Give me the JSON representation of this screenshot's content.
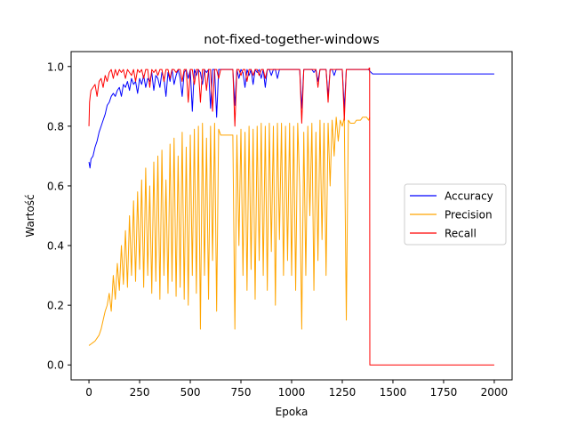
{
  "chart_data": {
    "type": "line",
    "title": "not-fixed-together-windows",
    "xlabel": "Epoka",
    "ylabel": "Wartość",
    "xlim": [
      -88,
      2088
    ],
    "ylim": [
      -0.05,
      1.05
    ],
    "xticks": [
      0,
      250,
      500,
      750,
      1000,
      1250,
      1500,
      1750,
      2000
    ],
    "yticks": [
      0.0,
      0.2,
      0.4,
      0.6,
      0.8,
      1.0
    ],
    "grid": false,
    "legend_position": "center-right",
    "series": [
      {
        "name": "Accuracy",
        "color": "#0000ff",
        "x": [
          0,
          5,
          10,
          20,
          30,
          40,
          50,
          60,
          70,
          80,
          90,
          100,
          110,
          120,
          130,
          140,
          150,
          160,
          170,
          180,
          190,
          200,
          210,
          220,
          230,
          240,
          250,
          260,
          270,
          280,
          290,
          300,
          310,
          320,
          330,
          340,
          350,
          360,
          370,
          380,
          390,
          400,
          410,
          420,
          430,
          440,
          450,
          460,
          470,
          480,
          490,
          500,
          510,
          520,
          530,
          540,
          550,
          560,
          570,
          580,
          590,
          600,
          610,
          620,
          630,
          640,
          650,
          660,
          670,
          680,
          690,
          700,
          710,
          720,
          730,
          740,
          750,
          760,
          770,
          780,
          790,
          800,
          810,
          820,
          830,
          840,
          850,
          860,
          870,
          880,
          890,
          900,
          910,
          920,
          930,
          940,
          950,
          960,
          970,
          980,
          990,
          1000,
          1010,
          1020,
          1030,
          1040,
          1050,
          1060,
          1070,
          1080,
          1090,
          1100,
          1110,
          1120,
          1130,
          1140,
          1150,
          1160,
          1170,
          1180,
          1190,
          1200,
          1210,
          1220,
          1230,
          1240,
          1250,
          1260,
          1270,
          1280,
          1290,
          1300,
          1310,
          1320,
          1330,
          1340,
          1350,
          1360,
          1370,
          1380,
          1385,
          1400,
          1500,
          1600,
          1700,
          1800,
          1900,
          2000
        ],
        "values": [
          0.68,
          0.66,
          0.69,
          0.7,
          0.73,
          0.75,
          0.78,
          0.8,
          0.82,
          0.84,
          0.87,
          0.88,
          0.9,
          0.91,
          0.9,
          0.92,
          0.93,
          0.9,
          0.94,
          0.93,
          0.95,
          0.92,
          0.96,
          0.94,
          0.95,
          0.91,
          0.96,
          0.94,
          0.97,
          0.93,
          0.96,
          0.95,
          0.98,
          0.92,
          0.97,
          0.96,
          0.93,
          0.98,
          0.96,
          0.9,
          0.98,
          0.95,
          0.99,
          0.94,
          0.97,
          0.99,
          0.96,
          0.9,
          0.98,
          0.99,
          0.96,
          0.99,
          0.85,
          0.99,
          0.97,
          0.99,
          0.98,
          0.94,
          0.99,
          0.98,
          0.99,
          0.86,
          0.99,
          0.99,
          0.83,
          0.99,
          0.99,
          0.99,
          0.99,
          0.99,
          0.99,
          0.99,
          0.99,
          0.87,
          0.99,
          0.96,
          0.99,
          0.98,
          0.93,
          0.99,
          0.97,
          0.99,
          0.94,
          0.99,
          0.98,
          0.99,
          0.96,
          0.99,
          0.93,
          0.99,
          0.99,
          0.97,
          0.99,
          0.99,
          0.96,
          0.99,
          0.99,
          0.99,
          0.99,
          0.99,
          0.99,
          0.99,
          0.99,
          0.99,
          0.99,
          0.99,
          0.86,
          0.99,
          0.99,
          0.99,
          0.99,
          0.99,
          0.98,
          0.99,
          0.95,
          0.99,
          0.99,
          0.99,
          0.99,
          0.9,
          0.99,
          0.99,
          0.97,
          0.99,
          0.99,
          0.99,
          0.99,
          0.86,
          0.99,
          0.99,
          0.99,
          0.99,
          0.99,
          0.99,
          0.99,
          0.99,
          0.99,
          0.99,
          0.99,
          0.99,
          0.985,
          0.975,
          0.975,
          0.975,
          0.975,
          0.975,
          0.975,
          0.975
        ]
      },
      {
        "name": "Precision",
        "color": "#ffa500",
        "x": [
          0,
          10,
          20,
          30,
          40,
          50,
          60,
          70,
          80,
          90,
          100,
          110,
          120,
          130,
          140,
          150,
          160,
          170,
          180,
          190,
          200,
          210,
          220,
          230,
          240,
          250,
          260,
          270,
          280,
          290,
          300,
          310,
          320,
          330,
          340,
          350,
          360,
          370,
          380,
          390,
          400,
          410,
          420,
          430,
          440,
          450,
          460,
          470,
          480,
          490,
          500,
          510,
          520,
          530,
          540,
          550,
          560,
          570,
          580,
          590,
          600,
          610,
          620,
          630,
          640,
          650,
          660,
          670,
          680,
          690,
          700,
          710,
          720,
          730,
          740,
          750,
          760,
          770,
          780,
          790,
          800,
          810,
          820,
          830,
          840,
          850,
          860,
          870,
          880,
          890,
          900,
          910,
          920,
          930,
          940,
          950,
          960,
          970,
          980,
          990,
          1000,
          1010,
          1020,
          1030,
          1040,
          1050,
          1060,
          1070,
          1080,
          1090,
          1100,
          1110,
          1120,
          1130,
          1140,
          1150,
          1160,
          1170,
          1180,
          1190,
          1200,
          1210,
          1220,
          1230,
          1240,
          1250,
          1260,
          1270,
          1280,
          1290,
          1300,
          1310,
          1320,
          1330,
          1340,
          1350,
          1360,
          1370,
          1380,
          1385
        ],
        "values": [
          0.065,
          0.07,
          0.075,
          0.08,
          0.09,
          0.1,
          0.12,
          0.15,
          0.18,
          0.2,
          0.24,
          0.18,
          0.3,
          0.22,
          0.34,
          0.25,
          0.4,
          0.27,
          0.45,
          0.26,
          0.5,
          0.3,
          0.55,
          0.28,
          0.58,
          0.32,
          0.62,
          0.26,
          0.66,
          0.3,
          0.6,
          0.24,
          0.68,
          0.28,
          0.7,
          0.22,
          0.72,
          0.3,
          0.62,
          0.24,
          0.74,
          0.28,
          0.76,
          0.23,
          0.7,
          0.26,
          0.78,
          0.22,
          0.73,
          0.2,
          0.77,
          0.3,
          0.79,
          0.24,
          0.8,
          0.12,
          0.81,
          0.3,
          0.76,
          0.22,
          0.8,
          0.35,
          0.81,
          0.18,
          0.79,
          0.77,
          0.77,
          0.77,
          0.77,
          0.77,
          0.77,
          0.77,
          0.12,
          0.77,
          0.4,
          0.79,
          0.3,
          0.78,
          0.25,
          0.8,
          0.32,
          0.79,
          0.22,
          0.8,
          0.35,
          0.81,
          0.3,
          0.8,
          0.25,
          0.81,
          0.38,
          0.8,
          0.2,
          0.81,
          0.42,
          0.81,
          0.3,
          0.8,
          0.35,
          0.81,
          0.3,
          0.8,
          0.25,
          0.81,
          0.6,
          0.12,
          0.78,
          0.3,
          0.8,
          0.5,
          0.81,
          0.25,
          0.78,
          0.35,
          0.82,
          0.42,
          0.81,
          0.3,
          0.81,
          0.6,
          0.82,
          0.7,
          0.83,
          0.75,
          0.82,
          0.8,
          0.83,
          0.15,
          0.82,
          0.81,
          0.81,
          0.81,
          0.82,
          0.82,
          0.82,
          0.83,
          0.83,
          0.83,
          0.82,
          0.83
        ]
      },
      {
        "name": "Recall",
        "color": "#ff0000",
        "x": [
          0,
          3,
          6,
          10,
          20,
          30,
          40,
          50,
          60,
          70,
          80,
          90,
          100,
          110,
          120,
          130,
          140,
          150,
          160,
          170,
          180,
          190,
          200,
          210,
          220,
          230,
          240,
          250,
          260,
          270,
          280,
          290,
          300,
          310,
          320,
          330,
          340,
          350,
          360,
          370,
          380,
          390,
          400,
          410,
          420,
          430,
          440,
          450,
          460,
          470,
          480,
          490,
          500,
          510,
          520,
          530,
          540,
          550,
          560,
          570,
          580,
          590,
          600,
          610,
          620,
          630,
          640,
          650,
          660,
          670,
          680,
          690,
          700,
          710,
          720,
          730,
          740,
          750,
          760,
          770,
          780,
          790,
          800,
          810,
          820,
          830,
          840,
          850,
          860,
          870,
          880,
          890,
          900,
          910,
          920,
          930,
          940,
          950,
          960,
          970,
          980,
          990,
          1000,
          1010,
          1020,
          1030,
          1040,
          1050,
          1060,
          1070,
          1080,
          1090,
          1100,
          1110,
          1120,
          1130,
          1140,
          1150,
          1160,
          1170,
          1180,
          1190,
          1200,
          1210,
          1220,
          1230,
          1240,
          1250,
          1260,
          1270,
          1280,
          1290,
          1300,
          1310,
          1320,
          1330,
          1340,
          1350,
          1360,
          1370,
          1380,
          1383,
          1385,
          1386,
          1400,
          1500,
          1600,
          1700,
          1800,
          1900,
          2000
        ],
        "values": [
          0.8,
          0.88,
          0.9,
          0.92,
          0.93,
          0.94,
          0.9,
          0.95,
          0.96,
          0.93,
          0.97,
          0.95,
          0.98,
          0.99,
          0.96,
          0.99,
          0.97,
          0.99,
          0.98,
          0.99,
          0.96,
          0.99,
          0.98,
          0.97,
          0.99,
          0.95,
          0.99,
          0.98,
          0.99,
          0.96,
          0.99,
          0.99,
          0.93,
          0.99,
          0.98,
          0.99,
          0.97,
          0.99,
          0.99,
          0.95,
          0.99,
          0.99,
          0.96,
          0.99,
          0.99,
          0.98,
          0.99,
          0.99,
          0.95,
          0.99,
          0.99,
          0.88,
          0.99,
          0.99,
          0.94,
          0.99,
          0.99,
          0.88,
          0.99,
          0.99,
          0.92,
          0.99,
          0.99,
          0.85,
          0.99,
          0.99,
          0.96,
          0.99,
          0.99,
          0.99,
          0.99,
          0.99,
          0.99,
          0.99,
          0.8,
          0.99,
          0.99,
          0.97,
          0.99,
          0.99,
          0.95,
          0.99,
          0.99,
          0.97,
          0.99,
          0.99,
          0.97,
          0.99,
          0.99,
          0.96,
          0.99,
          0.99,
          0.99,
          0.99,
          0.99,
          0.99,
          0.99,
          0.99,
          0.99,
          0.99,
          0.99,
          0.99,
          0.99,
          0.99,
          0.99,
          0.99,
          0.99,
          0.81,
          0.99,
          0.99,
          0.99,
          0.99,
          0.99,
          0.99,
          0.99,
          0.93,
          0.99,
          0.99,
          0.99,
          0.99,
          0.88,
          0.99,
          0.99,
          0.99,
          0.99,
          0.99,
          0.99,
          0.99,
          0.82,
          0.99,
          0.99,
          0.99,
          0.99,
          0.99,
          0.99,
          0.99,
          0.99,
          0.99,
          0.99,
          0.99,
          0.99,
          0.995,
          0.995,
          0.0,
          0.0,
          0.0,
          0.0,
          0.0,
          0.0,
          0.0,
          0.0
        ]
      }
    ]
  }
}
